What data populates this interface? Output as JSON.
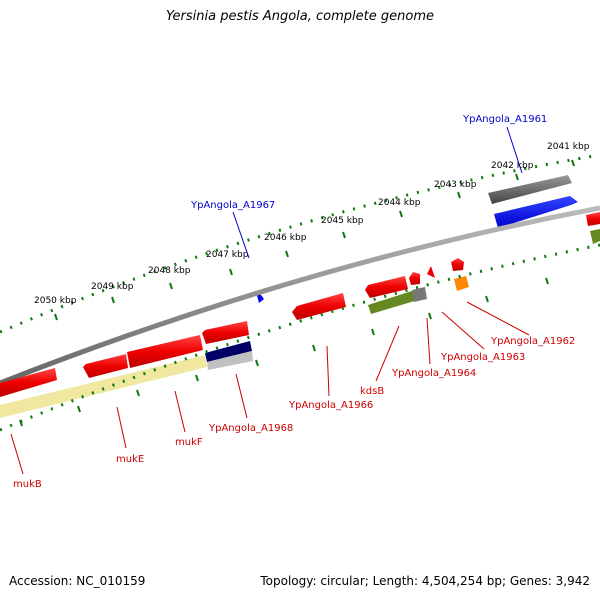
{
  "title": "Yersinia pestis Angola, complete genome",
  "accession": "Accession: NC_010159",
  "topology": "Topology: circular; Length: 4,504,254 bp; Genes: 3,942",
  "ruler": {
    "labels": [
      "2041 kbp",
      "2042 kbp",
      "2043 kbp",
      "2044 kbp",
      "2045 kbp",
      "2046 kbp",
      "2047 kbp",
      "2048 kbp",
      "2049 kbp",
      "2050 kbp"
    ]
  },
  "gene_labels": {
    "upper": [
      {
        "text": "YpAngola_A1961",
        "color": "#0000cc"
      },
      {
        "text": "YpAngola_A1967",
        "color": "#0000cc"
      }
    ],
    "lower": [
      {
        "text": "YpAngola_A1962",
        "color": "#cc0000"
      },
      {
        "text": "YpAngola_A1963",
        "color": "#cc0000"
      },
      {
        "text": "YpAngola_A1964",
        "color": "#cc0000"
      },
      {
        "text": "kdsB",
        "color": "#cc0000"
      },
      {
        "text": "YpAngola_A1966",
        "color": "#cc0000"
      },
      {
        "text": "YpAngola_A1968",
        "color": "#cc0000"
      },
      {
        "text": "mukF",
        "color": "#cc0000"
      },
      {
        "text": "mukE",
        "color": "#cc0000"
      },
      {
        "text": "mukB",
        "color": "#cc0000"
      }
    ]
  },
  "colors": {
    "backbone": "#777777",
    "tick": "#117711",
    "red_feature": "#ee0000",
    "blue_feature": "#0000ee",
    "dark_gray_feature": "#555555",
    "olive_feature": "#668822",
    "orange_feature": "#ff8800",
    "navy_feature": "#000066",
    "pale_yellow_feature": "#f0e8a0"
  }
}
